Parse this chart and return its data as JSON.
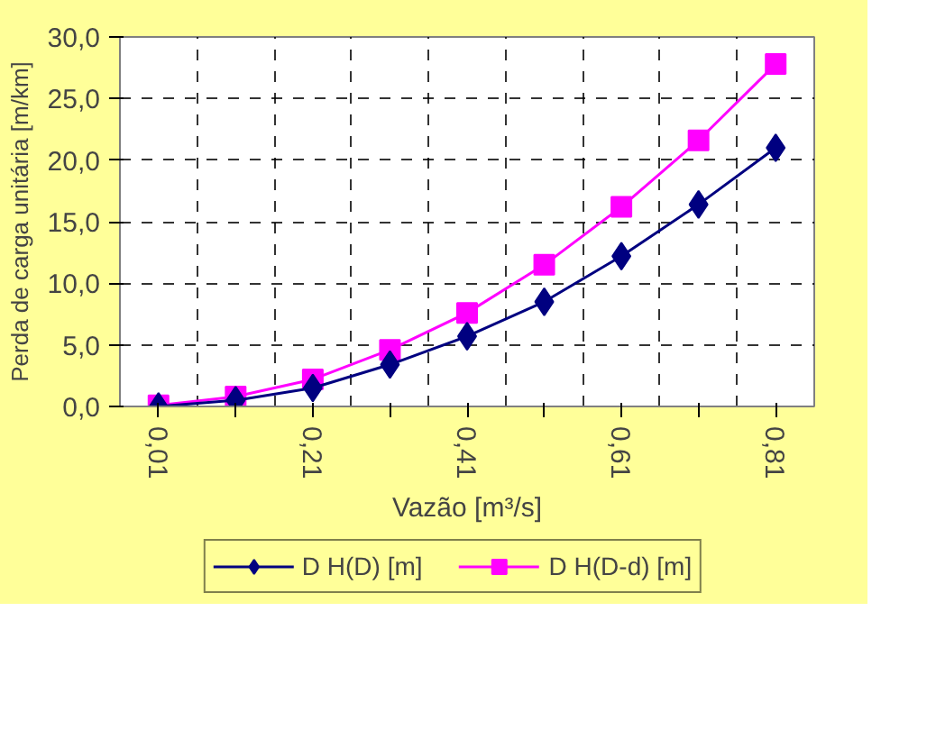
{
  "chart_data": {
    "type": "line",
    "xlabel": "Vazão [m³/s]",
    "ylabel": "Perda de carga unitária [m/km]",
    "categories": [
      "0,01",
      null,
      "0,21",
      null,
      "0,41",
      null,
      "0,61",
      null,
      "0,81"
    ],
    "series": [
      {
        "name": "D H(D) [m]",
        "color": "#000080",
        "marker": "diamond",
        "values": [
          0.0,
          0.5,
          1.5,
          3.4,
          5.7,
          8.5,
          12.2,
          16.4,
          21.0
        ]
      },
      {
        "name": "D H(D-d) [m]",
        "color": "#ff00ff",
        "marker": "square",
        "values": [
          0.1,
          0.8,
          2.2,
          4.6,
          7.6,
          11.5,
          16.2,
          21.6,
          27.8
        ]
      }
    ],
    "ylim": [
      0,
      30
    ],
    "yticks": [
      {
        "value": 0,
        "label": "0,0"
      },
      {
        "value": 5,
        "label": "5,0"
      },
      {
        "value": 10,
        "label": "10,0"
      },
      {
        "value": 15,
        "label": "15,0"
      },
      {
        "value": 20,
        "label": "20,0"
      },
      {
        "value": 25,
        "label": "25,0"
      },
      {
        "value": 30,
        "label": "30,0"
      }
    ],
    "grid": true,
    "legend": "bottom",
    "line_style": "solid"
  }
}
